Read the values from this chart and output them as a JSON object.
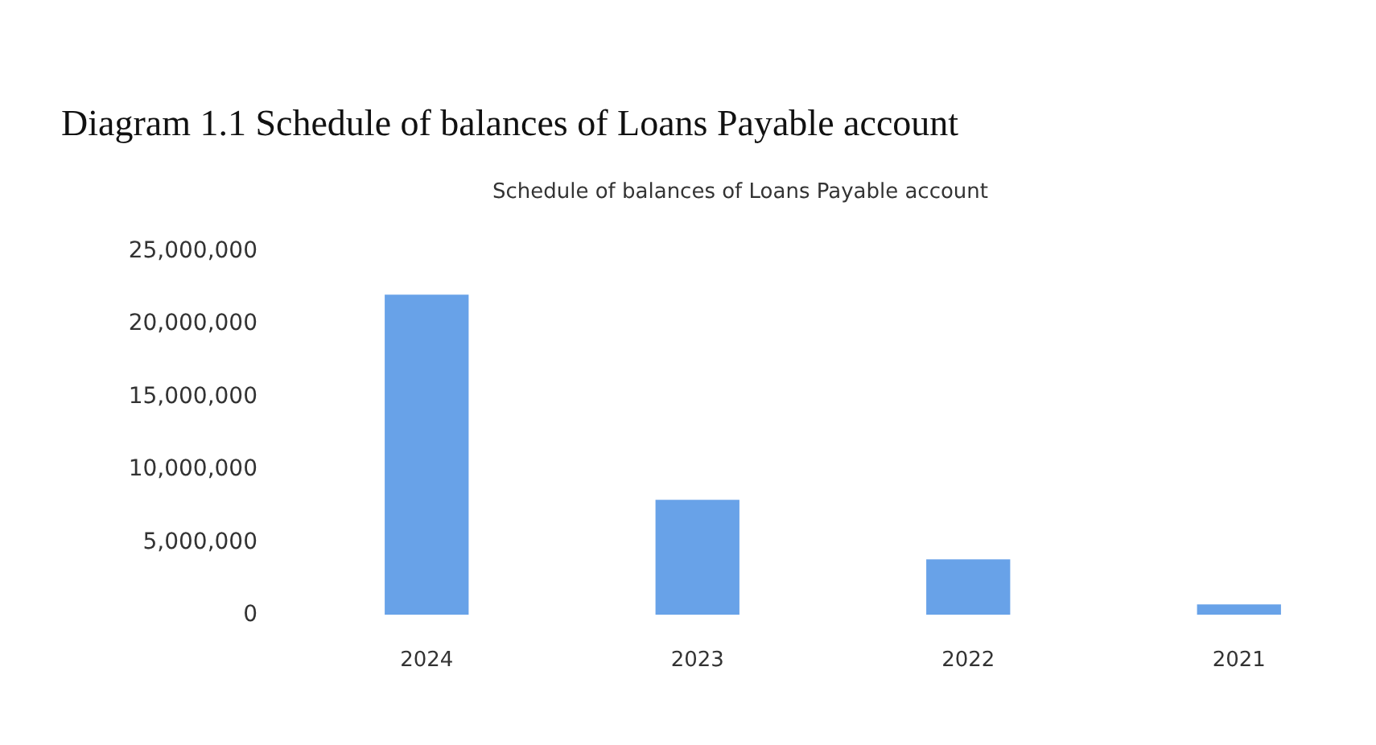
{
  "chart_data": {
    "type": "bar",
    "title": "Diagram 1.1 Schedule of balances of Loans Payable account",
    "subtitle": "Schedule of balances of Loans Payable account",
    "categories": [
      "2024",
      "2023",
      "2022",
      "2021"
    ],
    "values": [
      22000000,
      7900000,
      3800000,
      700000
    ],
    "color": "#68a2e8",
    "ylim": [
      0,
      25000000
    ],
    "yticks": [
      0,
      {
        "value": 5000000,
        "label": "5,000,000"
      },
      {
        "value": 10000000,
        "label": "10,000,000"
      },
      {
        "value": 15000000,
        "label": "15,000,000"
      },
      {
        "value": 20000000,
        "label": "20,000,000"
      },
      {
        "value": 25000000,
        "label": "25,000,000"
      }
    ],
    "grid": false
  }
}
